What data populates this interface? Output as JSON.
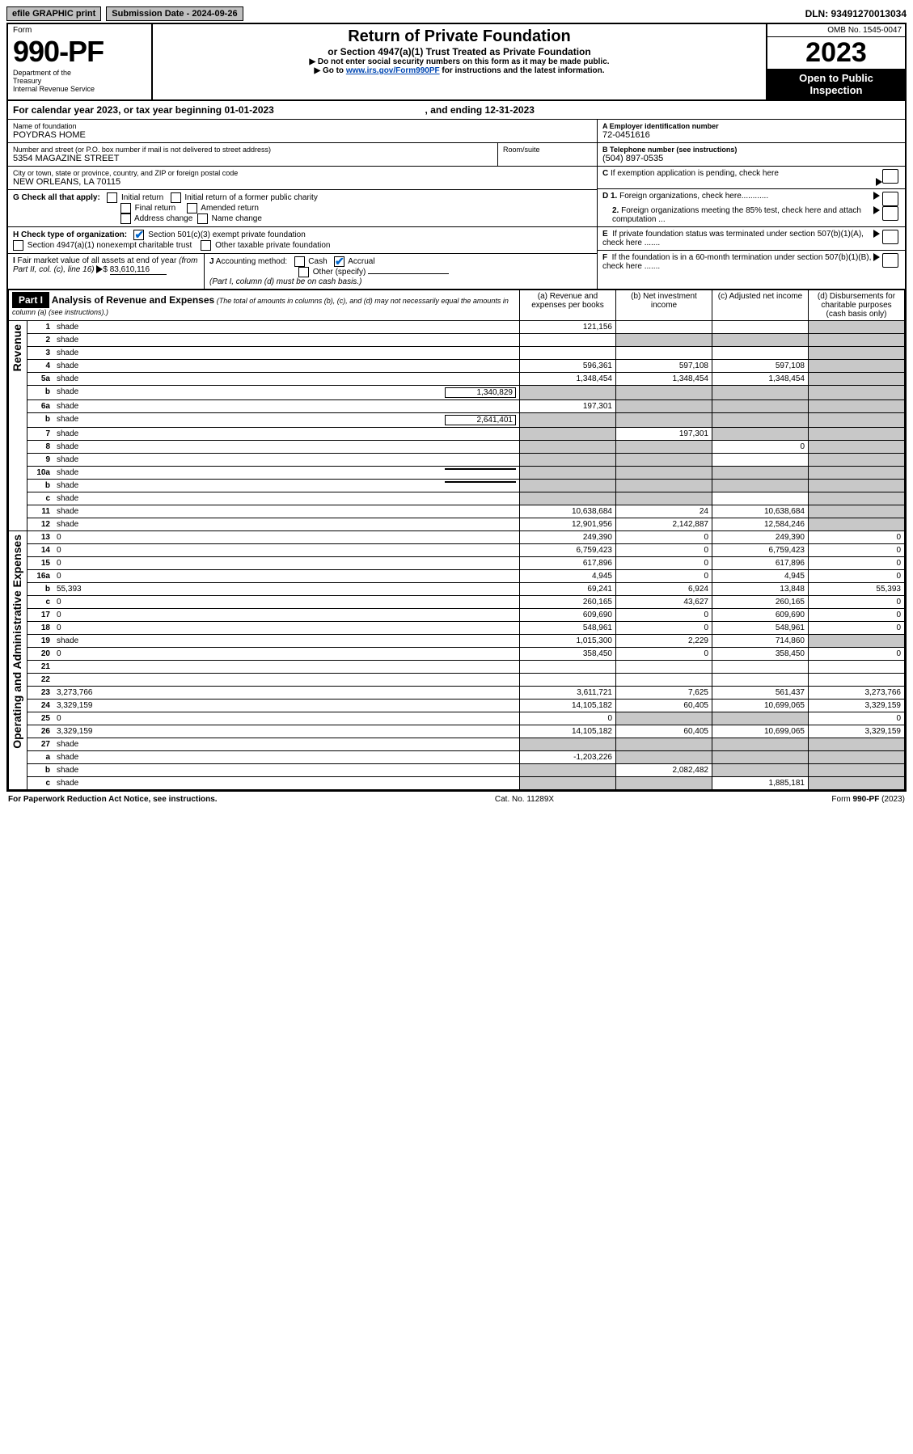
{
  "topbar": {
    "efile": "efile GRAPHIC print",
    "submission_label": "Submission Date - 2024-09-26",
    "dln": "DLN: 93491270013034"
  },
  "header": {
    "form_word": "Form",
    "form_number": "990-PF",
    "dept": "Department of the Treasury\nInternal Revenue Service",
    "title": "Return of Private Foundation",
    "subtitle": "or Section 4947(a)(1) Trust Treated as Private Foundation",
    "instr1": "▶ Do not enter social security numbers on this form as it may be made public.",
    "instr2_pre": "▶ Go to ",
    "instr2_link": "www.irs.gov/Form990PF",
    "instr2_post": " for instructions and the latest information.",
    "omb": "OMB No. 1545-0047",
    "year": "2023",
    "open": "Open to Public Inspection"
  },
  "cal": {
    "text_pre": "For calendar year 2023, or tax year beginning ",
    "begin": "01-01-2023",
    "mid": " , and ending ",
    "end": "12-31-2023"
  },
  "entity": {
    "name_lbl": "Name of foundation",
    "name": "POYDRAS HOME",
    "addr_lbl": "Number and street (or P.O. box number if mail is not delivered to street address)",
    "addr": "5354 MAGAZINE STREET",
    "room_lbl": "Room/suite",
    "city_lbl": "City or town, state or province, country, and ZIP or foreign postal code",
    "city": "NEW ORLEANS, LA  70115",
    "a_lbl": "A Employer identification number",
    "a_val": "72-0451616",
    "b_lbl": "B Telephone number (see instructions)",
    "b_val": "(504) 897-0535",
    "c_lbl": "C If exemption application is pending, check here",
    "d1": "D 1. Foreign organizations, check here",
    "d2": "   2. Foreign organizations meeting the 85% test, check here and attach computation ...",
    "e_lbl": "E  If private foundation status was terminated under section 507(b)(1)(A), check here .......",
    "f_lbl": "F  If the foundation is in a 60-month termination under section 507(b)(1)(B), check here .......",
    "g_lbl": "G Check all that apply:",
    "g_opts": [
      "Initial return",
      "Initial return of a former public charity",
      "Final return",
      "Amended return",
      "Address change",
      "Name change"
    ],
    "h_lbl": "H Check type of organization:",
    "h_opts": [
      "Section 501(c)(3) exempt private foundation",
      "Section 4947(a)(1) nonexempt charitable trust",
      "Other taxable private foundation"
    ],
    "i_lbl": "I Fair market value of all assets at end of year (from Part II, col. (c), line 16) ▶$",
    "i_val": "83,610,116",
    "j_lbl": "J Accounting method:",
    "j_opts": [
      "Cash",
      "Accrual"
    ],
    "j_other": "Other (specify)",
    "j_note": "(Part I, column (d) must be on cash basis.)"
  },
  "part1": {
    "bar": "Part I",
    "heading": "Analysis of Revenue and Expenses",
    "heading_note": " (The total of amounts in columns (b), (c), and (d) may not necessarily equal the amounts in column (a) (see instructions).)",
    "cols": {
      "a": "(a)   Revenue and expenses per books",
      "b": "(b)   Net investment income",
      "c": "(c)   Adjusted net income",
      "d": "(d)  Disbursements for charitable purposes (cash basis only)"
    },
    "side_rev": "Revenue",
    "side_exp": "Operating and Administrative Expenses"
  },
  "rows": [
    {
      "n": "1",
      "d": "shade",
      "a": "121,156",
      "b": "",
      "c": ""
    },
    {
      "n": "2",
      "d": "shade",
      "a": "",
      "b": "shade",
      "c": "shade",
      "merge_a": true
    },
    {
      "n": "3",
      "d": "shade",
      "a": "",
      "b": "",
      "c": ""
    },
    {
      "n": "4",
      "d": "shade",
      "a": "596,361",
      "b": "597,108",
      "c": "597,108"
    },
    {
      "n": "5a",
      "d": "shade",
      "a": "1,348,454",
      "b": "1,348,454",
      "c": "1,348,454"
    },
    {
      "n": "b",
      "d": "shade",
      "inset": "1,340,829",
      "a": "shade",
      "b": "shade",
      "c": "shade"
    },
    {
      "n": "6a",
      "d": "shade",
      "a": "197,301",
      "b": "shade",
      "c": "shade"
    },
    {
      "n": "b",
      "d": "shade",
      "inset": "2,641,401",
      "a": "shade",
      "b": "shade",
      "c": "shade"
    },
    {
      "n": "7",
      "d": "shade",
      "a": "shade",
      "b": "197,301",
      "c": "shade"
    },
    {
      "n": "8",
      "d": "shade",
      "a": "shade",
      "b": "shade",
      "c": "0"
    },
    {
      "n": "9",
      "d": "shade",
      "a": "shade",
      "b": "shade",
      "c": ""
    },
    {
      "n": "10a",
      "d": "shade",
      "inset": "",
      "a": "shade",
      "b": "shade",
      "c": "shade"
    },
    {
      "n": "b",
      "d": "shade",
      "inset": "",
      "a": "shade",
      "b": "shade",
      "c": "shade"
    },
    {
      "n": "c",
      "d": "shade",
      "a": "shade",
      "b": "shade",
      "c": ""
    },
    {
      "n": "11",
      "d": "shade",
      "a": "10,638,684",
      "b": "24",
      "c": "10,638,684"
    },
    {
      "n": "12",
      "d": "shade",
      "a": "12,901,956",
      "b": "2,142,887",
      "c": "12,584,246"
    },
    {
      "n": "13",
      "d": "0",
      "a": "249,390",
      "b": "0",
      "c": "249,390"
    },
    {
      "n": "14",
      "d": "0",
      "a": "6,759,423",
      "b": "0",
      "c": "6,759,423"
    },
    {
      "n": "15",
      "d": "0",
      "a": "617,896",
      "b": "0",
      "c": "617,896"
    },
    {
      "n": "16a",
      "d": "0",
      "a": "4,945",
      "b": "0",
      "c": "4,945"
    },
    {
      "n": "b",
      "d": "55,393",
      "a": "69,241",
      "b": "6,924",
      "c": "13,848"
    },
    {
      "n": "c",
      "d": "0",
      "a": "260,165",
      "b": "43,627",
      "c": "260,165"
    },
    {
      "n": "17",
      "d": "0",
      "a": "609,690",
      "b": "0",
      "c": "609,690"
    },
    {
      "n": "18",
      "d": "0",
      "a": "548,961",
      "b": "0",
      "c": "548,961"
    },
    {
      "n": "19",
      "d": "shade",
      "a": "1,015,300",
      "b": "2,229",
      "c": "714,860"
    },
    {
      "n": "20",
      "d": "0",
      "a": "358,450",
      "b": "0",
      "c": "358,450"
    },
    {
      "n": "21",
      "d": "",
      "a": "",
      "b": "",
      "c": ""
    },
    {
      "n": "22",
      "d": "",
      "a": "",
      "b": "",
      "c": ""
    },
    {
      "n": "23",
      "d": "3,273,766",
      "a": "3,611,721",
      "b": "7,625",
      "c": "561,437"
    },
    {
      "n": "24",
      "d": "3,329,159",
      "a": "14,105,182",
      "b": "60,405",
      "c": "10,699,065"
    },
    {
      "n": "25",
      "d": "0",
      "a": "0",
      "b": "shade",
      "c": "shade"
    },
    {
      "n": "26",
      "d": "3,329,159",
      "a": "14,105,182",
      "b": "60,405",
      "c": "10,699,065"
    },
    {
      "n": "27",
      "d": "shade",
      "a": "shade",
      "b": "shade",
      "c": "shade"
    },
    {
      "n": "a",
      "d": "shade",
      "a": "-1,203,226",
      "b": "shade",
      "c": "shade"
    },
    {
      "n": "b",
      "d": "shade",
      "a": "shade",
      "b": "2,082,482",
      "c": "shade"
    },
    {
      "n": "c",
      "d": "shade",
      "a": "shade",
      "b": "shade",
      "c": "1,885,181"
    }
  ],
  "footer": {
    "left": "For Paperwork Reduction Act Notice, see instructions.",
    "mid": "Cat. No. 11289X",
    "right": "Form 990-PF (2023)"
  }
}
